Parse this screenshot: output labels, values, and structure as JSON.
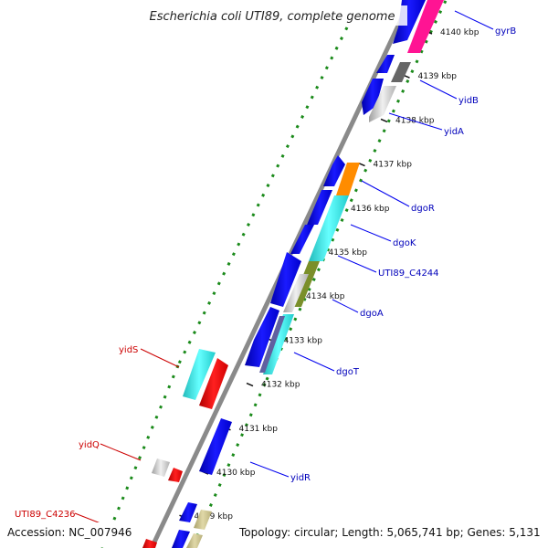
{
  "title": "Escherichia coli UTI89, complete genome",
  "footer": {
    "accession": "Accession: NC_007946",
    "info": "Topology: circular; Length: 5,065,741 bp; Genes: 5,131"
  },
  "ticks": [
    {
      "label": "4140 kbp",
      "kbp": 4140
    },
    {
      "label": "4139 kbp",
      "kbp": 4139
    },
    {
      "label": "4138 kbp",
      "kbp": 4138
    },
    {
      "label": "4137 kbp",
      "kbp": 4137
    },
    {
      "label": "4136 kbp",
      "kbp": 4136
    },
    {
      "label": "4135 kbp",
      "kbp": 4135
    },
    {
      "label": "4134 kbp",
      "kbp": 4134
    },
    {
      "label": "4133 kbp",
      "kbp": 4133
    },
    {
      "label": "4132 kbp",
      "kbp": 4132
    },
    {
      "label": "4131 kbp",
      "kbp": 4131
    },
    {
      "label": "4130 kbp",
      "kbp": 4130
    },
    {
      "label": "4129 kbp",
      "kbp": 4129
    }
  ],
  "gene_labels_plus": [
    "gyrB",
    "yidB",
    "yidA",
    "dgoR",
    "dgoK",
    "UTI89_C4244",
    "dgoA",
    "dgoT",
    "yidR"
  ],
  "gene_labels_minus": [
    "yidS",
    "yidQ",
    "UTI89_C4236"
  ],
  "colors": {
    "cds_plus": "#0000ee",
    "cds_minus": "#ff0000",
    "orange": "#ff8c00",
    "cyan": "#33dddd",
    "magenta": "#ff1493",
    "olive": "#7a8f2a",
    "gray": "#cfcfcf",
    "khaki": "#c8c08a",
    "backbone": "#8a8a8a",
    "dots": "#1a8a1a"
  }
}
